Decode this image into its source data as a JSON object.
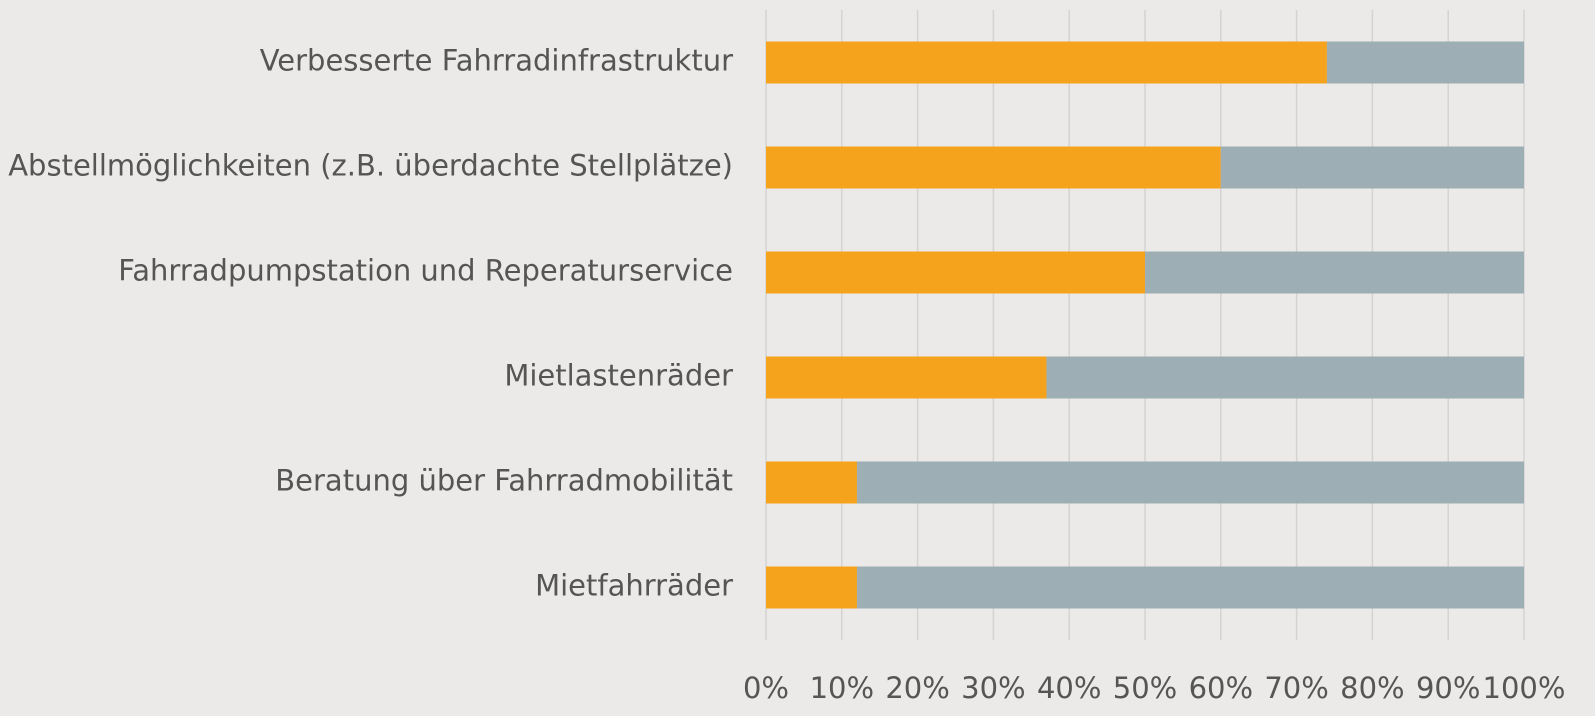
{
  "chart_data": {
    "type": "bar",
    "orientation": "horizontal",
    "stacked": true,
    "categories": [
      "Verbesserte Fahrradinfrastruktur",
      "Abstellmöglichkeiten (z.B. überdachte Stellplätze)",
      "Fahrradpumpstation und Reperaturservice",
      "Mietlastenräder",
      "Beratung über Fahrradmobilität",
      "Mietfahrräder"
    ],
    "series": [
      {
        "color": "#f5a31c",
        "values": [
          74,
          60,
          50,
          37,
          12,
          12
        ]
      },
      {
        "color": "#9dafb4",
        "values": [
          26,
          40,
          50,
          63,
          88,
          88
        ]
      }
    ],
    "xlim": [
      0,
      100
    ],
    "xticks": [
      {
        "value": 0,
        "label": "0%"
      },
      {
        "value": 10,
        "label": "10%"
      },
      {
        "value": 20,
        "label": "20%"
      },
      {
        "value": 30,
        "label": "30%"
      },
      {
        "value": 40,
        "label": "40%"
      },
      {
        "value": 50,
        "label": "50%"
      },
      {
        "value": 60,
        "label": "60%"
      },
      {
        "value": 70,
        "label": "70%"
      },
      {
        "value": 80,
        "label": "80%"
      },
      {
        "value": 90,
        "label": "90%"
      },
      {
        "value": 100,
        "label": "100%"
      }
    ],
    "grid": true
  }
}
